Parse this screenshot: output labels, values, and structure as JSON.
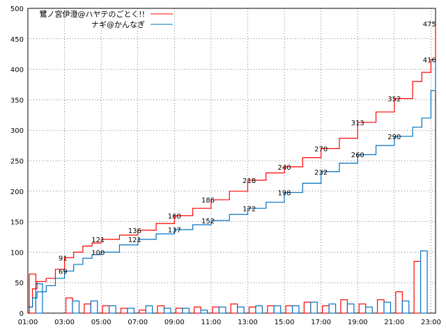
{
  "chart_data": {
    "type": "line",
    "grid": true,
    "legend_position": "top-left",
    "x_tick_labels": [
      "01:00",
      "03:00",
      "05:00",
      "07:00",
      "09:00",
      "11:00",
      "13:00",
      "15:00",
      "17:00",
      "19:00",
      "21:00",
      "23:00"
    ],
    "xlim": [
      "01:00",
      "23:15"
    ],
    "ylim": [
      0,
      500
    ],
    "y_ticks": [
      0,
      50,
      100,
      150,
      200,
      250,
      300,
      350,
      400,
      450,
      500
    ],
    "series": [
      {
        "name": "鷺ノ宮伊澄@ハヤテのごとく!!",
        "color": "#ff0000",
        "cumulative": [
          [
            "01:00",
            10
          ],
          [
            "01:15",
            40
          ],
          [
            "01:30",
            52
          ],
          [
            "02:00",
            57
          ],
          [
            "02:30",
            72
          ],
          [
            "03:00",
            91
          ],
          [
            "03:30",
            100
          ],
          [
            "04:00",
            110
          ],
          [
            "04:30",
            115
          ],
          [
            "05:00",
            121
          ],
          [
            "06:00",
            128
          ],
          [
            "07:00",
            136
          ],
          [
            "08:00",
            147
          ],
          [
            "09:00",
            160
          ],
          [
            "10:00",
            172
          ],
          [
            "11:00",
            186
          ],
          [
            "12:00",
            200
          ],
          [
            "13:00",
            218
          ],
          [
            "14:00",
            230
          ],
          [
            "15:00",
            240
          ],
          [
            "16:00",
            255
          ],
          [
            "17:00",
            270
          ],
          [
            "18:00",
            287
          ],
          [
            "19:00",
            313
          ],
          [
            "20:00",
            330
          ],
          [
            "21:00",
            352
          ],
          [
            "22:00",
            380
          ],
          [
            "22:30",
            395
          ],
          [
            "23:00",
            416
          ],
          [
            "23:15",
            475
          ]
        ],
        "hourly": [
          64,
          0,
          25,
          15,
          12,
          8,
          5,
          12,
          8,
          10,
          10,
          15,
          10,
          12,
          12,
          18,
          12,
          22,
          15,
          22,
          35,
          85
        ]
      },
      {
        "name": "ナギ@かんなぎ",
        "color": "#0070c0",
        "cumulative": [
          [
            "01:00",
            10
          ],
          [
            "01:15",
            25
          ],
          [
            "01:30",
            35
          ],
          [
            "02:00",
            45
          ],
          [
            "02:30",
            57
          ],
          [
            "03:00",
            69
          ],
          [
            "03:30",
            80
          ],
          [
            "04:00",
            90
          ],
          [
            "04:30",
            96
          ],
          [
            "05:00",
            100
          ],
          [
            "06:00",
            112
          ],
          [
            "07:00",
            121
          ],
          [
            "08:00",
            130
          ],
          [
            "09:00",
            137
          ],
          [
            "10:00",
            145
          ],
          [
            "11:00",
            152
          ],
          [
            "12:00",
            162
          ],
          [
            "13:00",
            172
          ],
          [
            "14:00",
            182
          ],
          [
            "15:00",
            198
          ],
          [
            "16:00",
            213
          ],
          [
            "17:00",
            232
          ],
          [
            "18:00",
            246
          ],
          [
            "19:00",
            260
          ],
          [
            "20:00",
            275
          ],
          [
            "21:00",
            290
          ],
          [
            "22:00",
            305
          ],
          [
            "22:30",
            320
          ],
          [
            "23:00",
            365
          ],
          [
            "23:15",
            416
          ]
        ],
        "hourly": [
          48,
          0,
          20,
          20,
          12,
          8,
          12,
          8,
          8,
          5,
          10,
          10,
          12,
          12,
          12,
          18,
          15,
          15,
          10,
          18,
          20,
          102
        ]
      }
    ],
    "data_labels": [
      {
        "x": "02:55",
        "y": 91,
        "text": "91"
      },
      {
        "x": "02:55",
        "y": 69,
        "text": "69"
      },
      {
        "x": "04:50",
        "y": 121,
        "text": "121"
      },
      {
        "x": "04:50",
        "y": 100,
        "text": "100"
      },
      {
        "x": "06:50",
        "y": 136,
        "text": "136"
      },
      {
        "x": "06:50",
        "y": 121,
        "text": "121"
      },
      {
        "x": "09:00",
        "y": 160,
        "text": "160"
      },
      {
        "x": "09:00",
        "y": 137,
        "text": "137"
      },
      {
        "x": "10:50",
        "y": 186,
        "text": "186"
      },
      {
        "x": "10:50",
        "y": 152,
        "text": "152"
      },
      {
        "x": "13:05",
        "y": 218,
        "text": "218"
      },
      {
        "x": "13:05",
        "y": 172,
        "text": "172"
      },
      {
        "x": "15:00",
        "y": 240,
        "text": "240"
      },
      {
        "x": "15:00",
        "y": 198,
        "text": "198"
      },
      {
        "x": "17:00",
        "y": 270,
        "text": "270"
      },
      {
        "x": "17:00",
        "y": 232,
        "text": "232"
      },
      {
        "x": "19:00",
        "y": 313,
        "text": "313"
      },
      {
        "x": "19:00",
        "y": 260,
        "text": "260"
      },
      {
        "x": "21:00",
        "y": 352,
        "text": "352"
      },
      {
        "x": "21:00",
        "y": 290,
        "text": "290"
      },
      {
        "x": "22:55",
        "y": 416,
        "text": "416"
      },
      {
        "x": "22:55",
        "y": 475,
        "text": "475"
      }
    ]
  }
}
